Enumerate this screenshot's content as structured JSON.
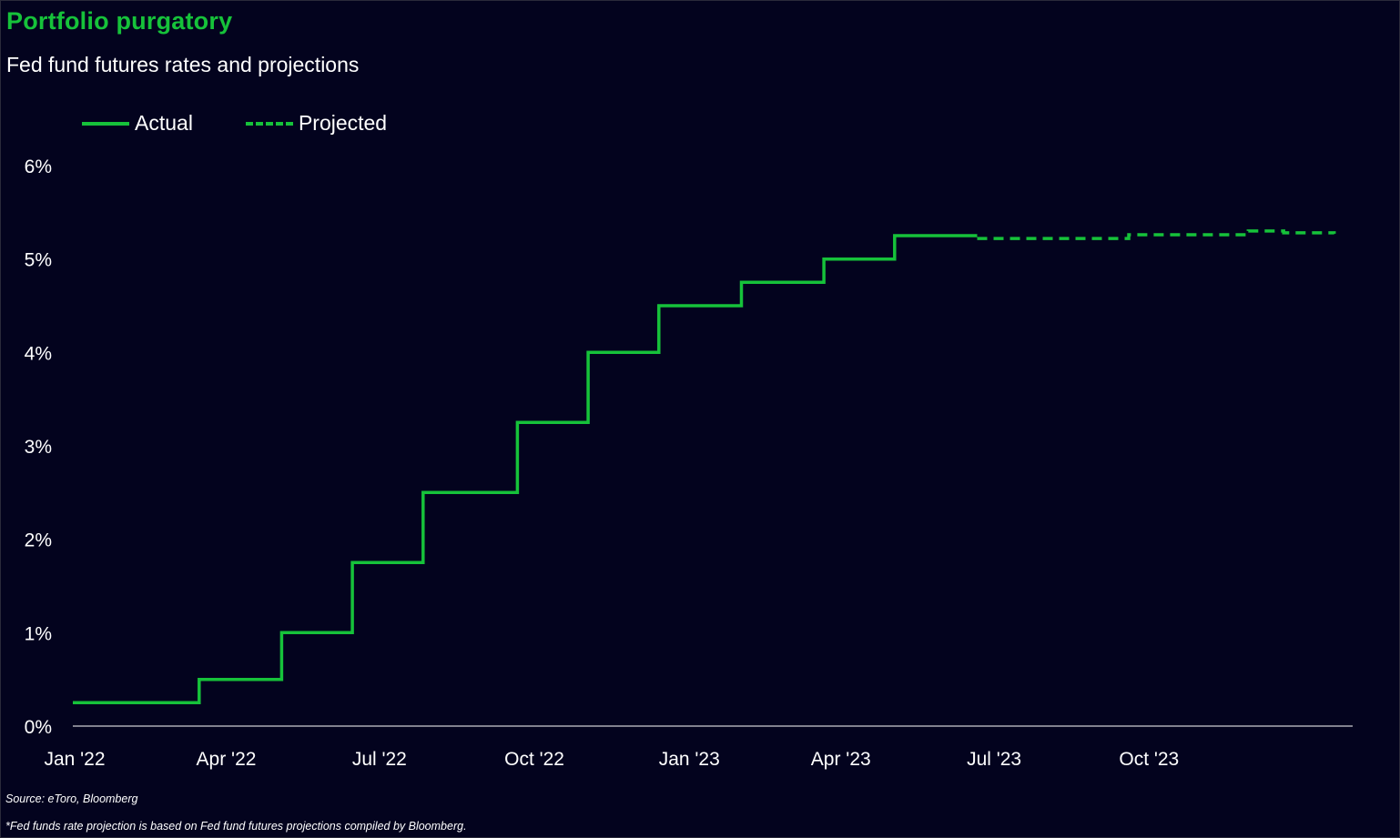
{
  "title": "Portfolio purgatory",
  "subtitle": "Fed fund futures rates and projections",
  "legend": {
    "actual_label": "Actual",
    "projected_label": "Projected"
  },
  "footnotes": {
    "source": "Source: eToro, Bloomberg",
    "note": "*Fed funds rate projection is based on Fed fund futures projections compiled by Bloomberg."
  },
  "colors": {
    "background": "#03031e",
    "line": "#16c23a",
    "title": "#16c23a",
    "text": "#ffffff"
  },
  "chart_data": {
    "type": "line",
    "title": "Portfolio purgatory",
    "subtitle": "Fed fund futures rates and projections",
    "xlabel": "",
    "ylabel": "",
    "x_range": [
      "2022-01-01",
      "2024-01-31"
    ],
    "ylim": [
      0,
      6
    ],
    "y_ticks": [
      "0%",
      "1%",
      "2%",
      "3%",
      "4%",
      "5%",
      "6%"
    ],
    "x_ticks": [
      {
        "date": "2022-01-01",
        "label": "Jan '22"
      },
      {
        "date": "2022-04-01",
        "label": "Apr '22"
      },
      {
        "date": "2022-07-01",
        "label": "Jul '22"
      },
      {
        "date": "2022-10-01",
        "label": "Oct '22"
      },
      {
        "date": "2023-01-01",
        "label": "Jan '23"
      },
      {
        "date": "2023-04-01",
        "label": "Apr '23"
      },
      {
        "date": "2023-07-01",
        "label": "Jul '23"
      },
      {
        "date": "2023-10-01",
        "label": "Oct '23"
      }
    ],
    "grid": false,
    "legend_position": "top-left",
    "series": [
      {
        "name": "Actual",
        "style": "solid",
        "step": true,
        "points": [
          {
            "x": "2022-01-01",
            "y": 0.25
          },
          {
            "x": "2022-03-17",
            "y": 0.5
          },
          {
            "x": "2022-05-05",
            "y": 1.0
          },
          {
            "x": "2022-06-16",
            "y": 1.75
          },
          {
            "x": "2022-07-28",
            "y": 2.5
          },
          {
            "x": "2022-09-22",
            "y": 3.25
          },
          {
            "x": "2022-11-03",
            "y": 4.0
          },
          {
            "x": "2022-12-15",
            "y": 4.5
          },
          {
            "x": "2023-02-02",
            "y": 4.75
          },
          {
            "x": "2023-03-23",
            "y": 5.0
          },
          {
            "x": "2023-05-04",
            "y": 5.25
          },
          {
            "x": "2023-06-22",
            "y": 5.25
          }
        ]
      },
      {
        "name": "Projected",
        "style": "dashed",
        "step": true,
        "points": [
          {
            "x": "2023-06-22",
            "y": 5.22
          },
          {
            "x": "2023-09-20",
            "y": 5.26
          },
          {
            "x": "2023-11-30",
            "y": 5.3
          },
          {
            "x": "2023-12-21",
            "y": 5.28
          },
          {
            "x": "2024-01-20",
            "y": 5.27
          }
        ]
      }
    ]
  }
}
